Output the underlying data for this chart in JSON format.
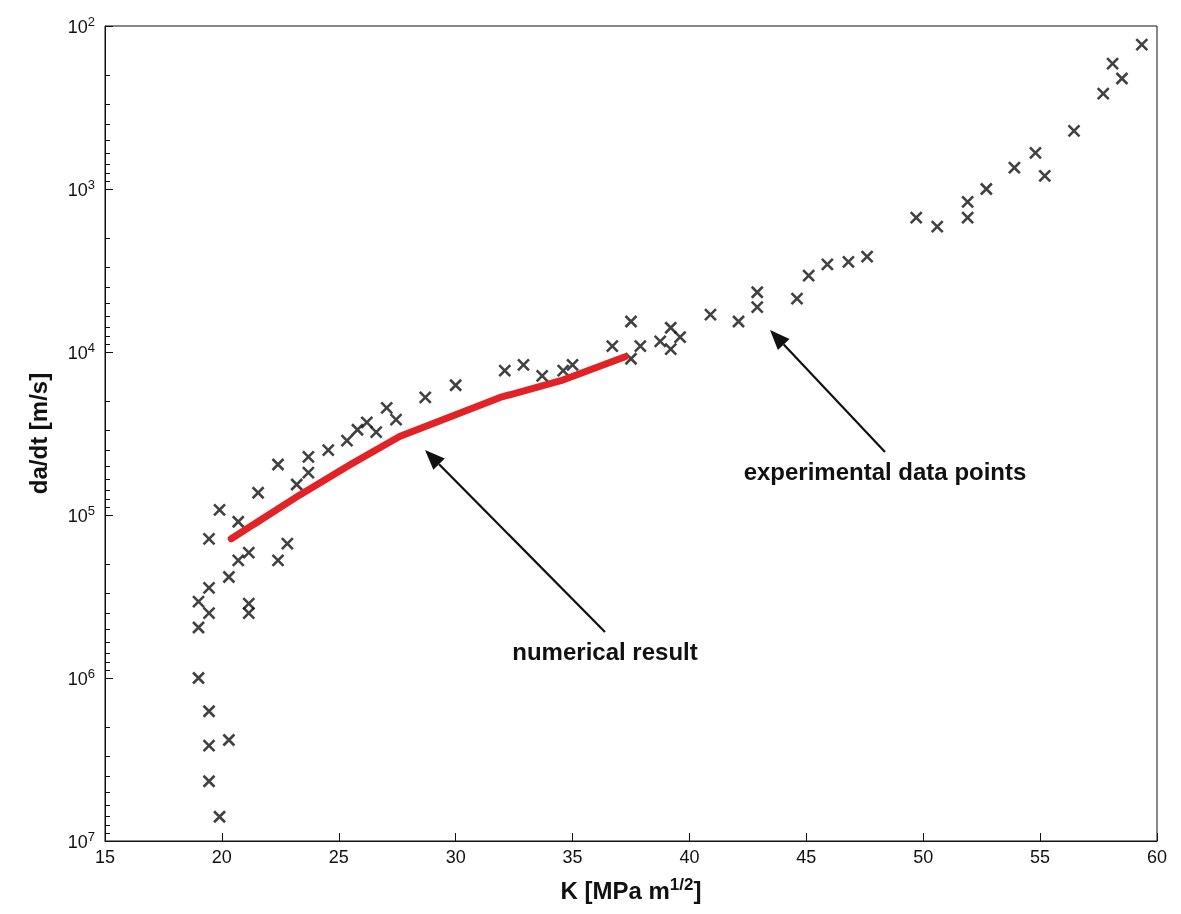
{
  "chart_data": {
    "type": "scatter",
    "xlabel": "K [MPa m$^{1/2}$]",
    "ylabel": "da/dt [m/s]",
    "xlim": [
      15,
      60
    ],
    "xticks": [
      15,
      20,
      25,
      30,
      35,
      40,
      45,
      50,
      55,
      60
    ],
    "ylim": [
      10000000,
      100
    ],
    "log": "y",
    "yticks": [
      {
        "value": 100,
        "label": "10$^{2}$"
      },
      {
        "value": 1000,
        "label": "10$^{3}$"
      },
      {
        "value": 10000,
        "label": "10$^{4}$"
      },
      {
        "value": 100000,
        "label": "10$^{5}$"
      },
      {
        "value": 1000000,
        "label": "10$^{6}$"
      },
      {
        "value": 10000000,
        "label": "10$^{7}$"
      }
    ],
    "grid": false,
    "marker": "cross",
    "series": [
      {
        "color": "#111111",
        "x": [
          19.9,
          19.45,
          19.45,
          20.3,
          19.45,
          19.0,
          19.0,
          19.45,
          19.0,
          19.45,
          20.3,
          20.7,
          21.15,
          21.15,
          21.15,
          22.4,
          22.8,
          19.45,
          20.7,
          19.9,
          21.55,
          22.4,
          23.7,
          23.7,
          23.2,
          24.55,
          25.35,
          25.8,
          26.2,
          26.6,
          27.05,
          27.45,
          28.7,
          30.0,
          32.1,
          32.9,
          33.7,
          34.6,
          35.0,
          36.7,
          37.5,
          37.5,
          37.9,
          38.75,
          39.2,
          39.6,
          39.2,
          40.9,
          42.1,
          42.9,
          42.9,
          44.6,
          45.1,
          45.9,
          46.8,
          47.6,
          49.7,
          50.6,
          51.9,
          51.9,
          52.7,
          53.9,
          54.8,
          55.2,
          56.45,
          57.7,
          58.1,
          58.5,
          59.35
        ],
        "values": [
          7100000,
          4300000,
          2600000,
          2400000,
          1600000,
          1000000,
          490000,
          400000,
          340000,
          280000,
          240000,
          190000,
          170000,
          350000,
          400000,
          190000,
          150000,
          140000,
          110000,
          93000,
          73000,
          49000,
          44000,
          55000,
          65000,
          40000,
          35000,
          30000,
          27000,
          31000,
          22000,
          26000,
          19000,
          16000,
          13000,
          12000,
          14000,
          13000,
          12000,
          9200,
          6500,
          11000,
          9200,
          8600,
          7100,
          8100,
          9600,
          5900,
          6500,
          5300,
          4300,
          4700,
          3400,
          2900,
          2800,
          2600,
          1500,
          1700,
          1200,
          1500,
          1000,
          740,
          600,
          830,
          440,
          260,
          170,
          210,
          130
        ]
      },
      {
        "type": "line",
        "color": "#e32227",
        "marker": "none",
        "line_style": "solid",
        "x": [
          20.4,
          23.35,
          25.5,
          27.6,
          31.9,
          34.5,
          37.25
        ],
        "values": [
          140000,
          75000,
          49000,
          33000,
          19000,
          15000,
          10700
        ]
      }
    ],
    "annotations": [
      "numerical result",
      "experimental data points"
    ]
  }
}
